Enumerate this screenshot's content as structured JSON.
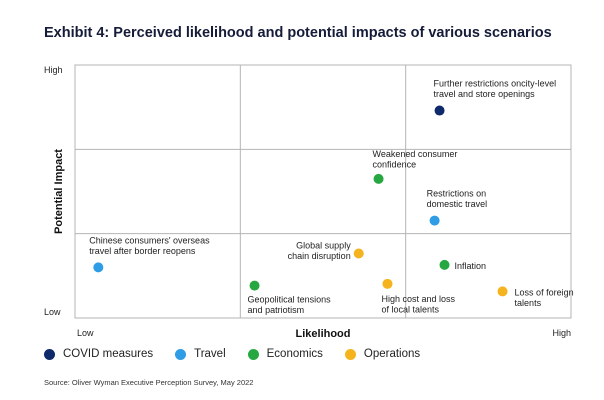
{
  "title": "Exhibit 4: Perceived likelihood and potential impacts of various scenarios",
  "source": "Source:   Oliver Wyman Executive Perception Survey, May 2022",
  "chart_data": {
    "type": "scatter",
    "title": "Exhibit 4: Perceived likelihood and potential impacts of various scenarios",
    "xlabel": "Likelihood",
    "ylabel": "Potential Impact",
    "xlim": [
      0,
      1
    ],
    "ylim": [
      0,
      1
    ],
    "x_tick_labels": [
      "Low",
      "High"
    ],
    "y_tick_labels": [
      "Low",
      "High"
    ],
    "grid": "3x3 quadrant grid",
    "legend_position": "bottom",
    "series": [
      {
        "name": "COVID measures",
        "color": "#0e2a6b"
      },
      {
        "name": "Travel",
        "color": "#2f9ce6"
      },
      {
        "name": "Economics",
        "color": "#27a742"
      },
      {
        "name": "Operations",
        "color": "#f5b41e"
      }
    ],
    "points": [
      {
        "label": "Further restrictions oncity-level travel and store openings",
        "category": "COVID measures",
        "x": 0.735,
        "y": 0.82
      },
      {
        "label": "Weakened consumer confidence",
        "category": "Economics",
        "x": 0.612,
        "y": 0.55
      },
      {
        "label": "Restrictions on domestic travel",
        "category": "Travel",
        "x": 0.725,
        "y": 0.385
      },
      {
        "label": "Chinese consumers' overseas travel after border reopens",
        "category": "Travel",
        "x": 0.047,
        "y": 0.2
      },
      {
        "label": "Global supply chain disruption",
        "category": "Operations",
        "x": 0.572,
        "y": 0.255
      },
      {
        "label": "Inflation",
        "category": "Economics",
        "x": 0.745,
        "y": 0.21
      },
      {
        "label": "Geopolitical tensions and patriotism",
        "category": "Economics",
        "x": 0.362,
        "y": 0.128
      },
      {
        "label": "High cost and loss of local talents",
        "category": "Operations",
        "x": 0.63,
        "y": 0.135
      },
      {
        "label": "Loss of foreign talents",
        "category": "Operations",
        "x": 0.862,
        "y": 0.105
      }
    ]
  }
}
